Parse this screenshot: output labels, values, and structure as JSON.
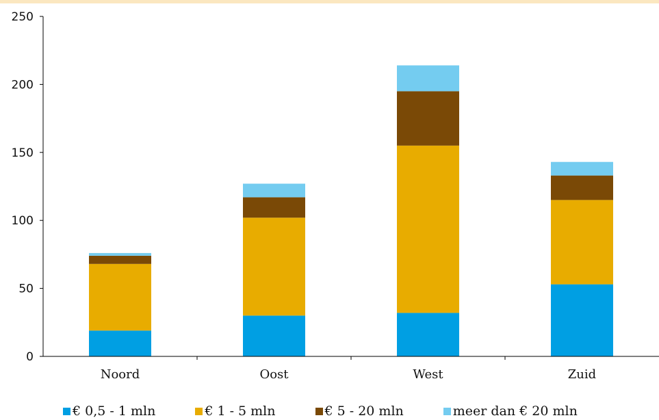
{
  "chart_data": {
    "type": "bar",
    "stacked": true,
    "categories": [
      "Noord",
      "Oost",
      "West",
      "Zuid"
    ],
    "series": [
      {
        "name": "€ 0,5 - 1 mln",
        "color": "#009fe3",
        "values": [
          19,
          30,
          32,
          53
        ]
      },
      {
        "name": "€ 1 - 5 mln",
        "color": "#e8ac00",
        "values": [
          49,
          72,
          123,
          62
        ]
      },
      {
        "name": "€ 5 - 20 mln",
        "color": "#7a4906",
        "values": [
          6,
          15,
          40,
          18
        ]
      },
      {
        "name": "meer dan € 20 mln",
        "color": "#74ccf0",
        "values": [
          2,
          10,
          19,
          10
        ]
      }
    ],
    "ylim": [
      0,
      250
    ],
    "yticks": [
      "0",
      "50",
      "100",
      "150",
      "200",
      "250"
    ],
    "grid": false,
    "legend_position": "bottom",
    "title": "",
    "xlabel": "",
    "ylabel": ""
  }
}
